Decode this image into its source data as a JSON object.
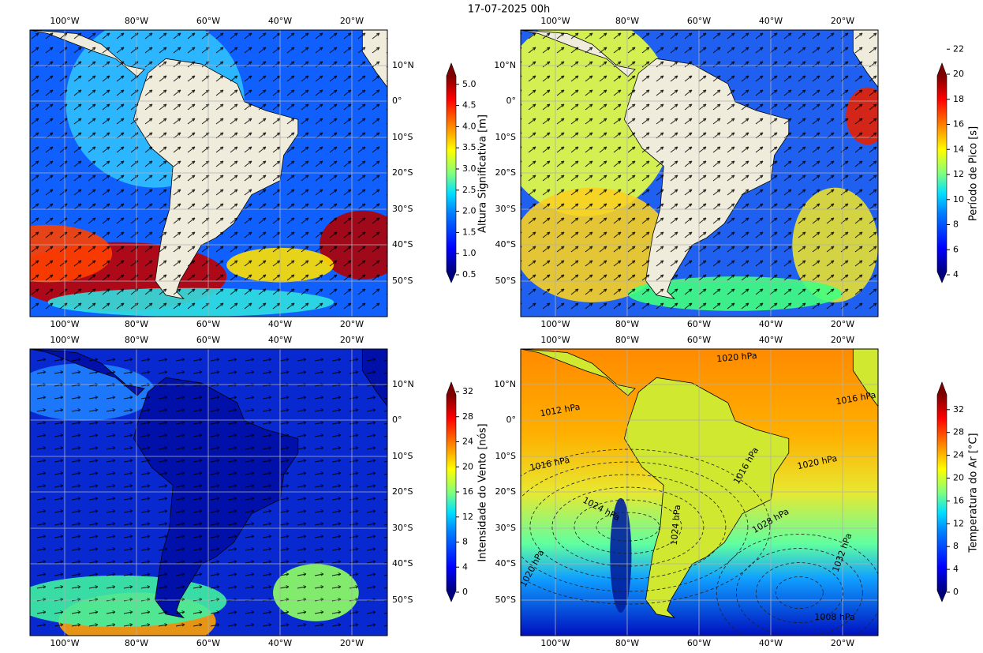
{
  "title": "17-07-2025 00h",
  "longitude_ticks": [
    "100°W",
    "80°W",
    "60°W",
    "40°W",
    "20°W"
  ],
  "latitude_ticks": [
    "10°N",
    "0°",
    "10°S",
    "20°S",
    "30°S",
    "40°S",
    "50°S"
  ],
  "panels": [
    {
      "colorbar": {
        "label": "Altura Significativa [m]",
        "ticks": [
          "0.5",
          "1.0",
          "1.5",
          "2.0",
          "2.5",
          "3.0",
          "3.5",
          "4.0",
          "4.5",
          "5.0"
        ]
      }
    },
    {
      "colorbar": {
        "label": "Período de Pico [s]",
        "ticks": [
          "4",
          "6",
          "8",
          "10",
          "12",
          "14",
          "16",
          "18",
          "20",
          "22"
        ]
      }
    },
    {
      "colorbar": {
        "label": "Intensidade do Vento [nós]",
        "ticks": [
          "0",
          "4",
          "8",
          "12",
          "16",
          "20",
          "24",
          "28",
          "32"
        ]
      }
    },
    {
      "colorbar": {
        "label": "Temperatura do Ar [°C]",
        "ticks": [
          "0",
          "4",
          "8",
          "12",
          "16",
          "20",
          "24",
          "28",
          "32"
        ]
      },
      "contour_labels": [
        "1020 hPa",
        "1016 hPa",
        "1012 hPa",
        "1016 hPa",
        "1020 hPa",
        "1024 hPa",
        "1016 hPa",
        "1028 hPa",
        "1032 hPa",
        "1024 hPa",
        "1020 hPa",
        "1008 hPa"
      ]
    }
  ]
}
